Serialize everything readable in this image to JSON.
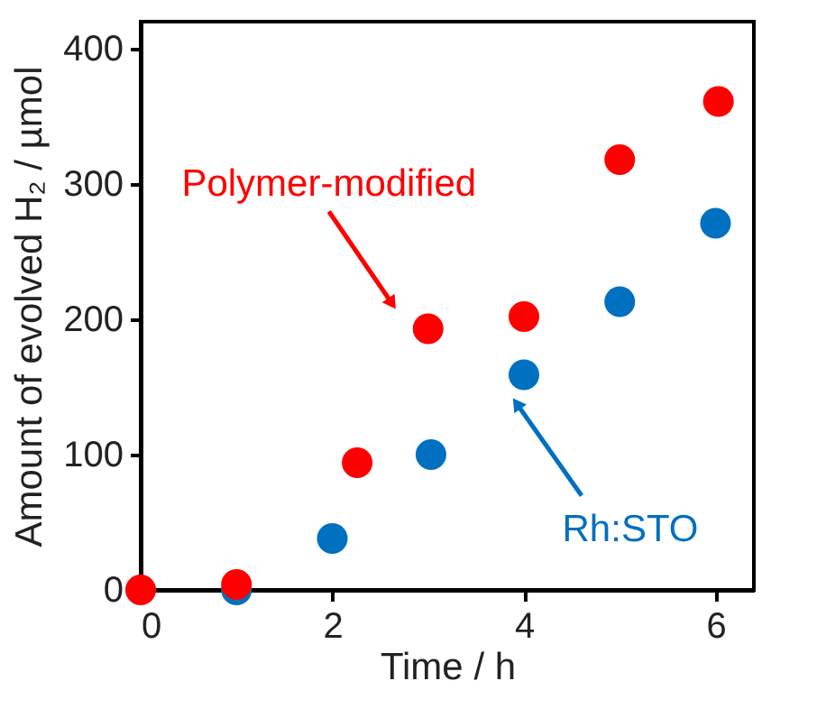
{
  "chart_data": {
    "type": "scatter",
    "xlabel": "Time / h",
    "ylabel": "Amount of evolved H₂ / µmol",
    "xlim": [
      0,
      6.4
    ],
    "xticks": [
      0,
      2,
      4,
      6
    ],
    "ylim": [
      0,
      420
    ],
    "yticks": [
      0,
      100,
      200,
      300,
      400
    ],
    "grid": false,
    "marker": "circle",
    "series": [
      {
        "name": "Rh:STO",
        "color": "#0070c0",
        "x": [
          1,
          2,
          3.03,
          4,
          5,
          6
        ],
        "values": [
          0,
          38,
          100,
          159,
          213,
          271
        ]
      },
      {
        "name": "Polymer-modified",
        "color": "#ff0000",
        "x": [
          0,
          1,
          2.26,
          3,
          4,
          5,
          6.03
        ],
        "values": [
          0,
          4,
          94,
          193,
          202,
          318,
          361
        ]
      }
    ]
  }
}
